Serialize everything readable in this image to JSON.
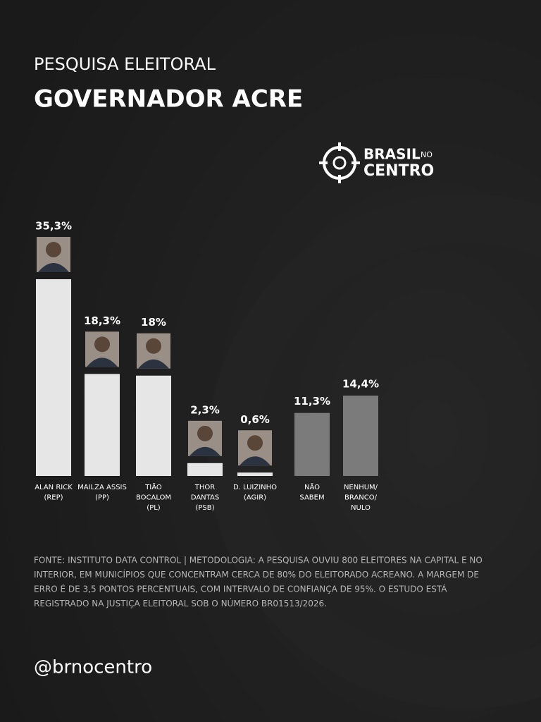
{
  "header": {
    "kicker": "PESQUISA ELEITORAL",
    "title": "GOVERNADOR ACRE"
  },
  "logo": {
    "line1": "BRASIL",
    "small": "NO",
    "line2": "CENTRO"
  },
  "chart_data": {
    "type": "bar",
    "categories": [
      [
        "ALAN RICK",
        "(REP)"
      ],
      [
        "MAILZA ASSIS",
        "(PP)"
      ],
      [
        "TIÃO",
        "BOCALOM",
        "(PL)"
      ],
      [
        "THOR",
        "DANTAS",
        "(PSB)"
      ],
      [
        "D. LUIZINHO",
        "(AGIR)"
      ],
      [
        "NÃO",
        "SABEM"
      ],
      [
        "NENHUM/",
        "BRANCO/",
        "NULO"
      ]
    ],
    "values": [
      35.3,
      18.3,
      18,
      2.3,
      0.6,
      11.3,
      14.4
    ],
    "value_labels": [
      "35,3%",
      "18,3%",
      "18%",
      "2,3%",
      "0,6%",
      "11,3%",
      "14,4%"
    ],
    "colors": [
      "#e6e6e6",
      "#e6e6e6",
      "#e6e6e6",
      "#e6e6e6",
      "#e6e6e6",
      "#7b7b7b",
      "#7b7b7b"
    ]
  },
  "source": [
    "FONTE: INSTITUTO DATA CONTROL | METODOLOGIA: A PESQUISA OUVIU 800 ELEITORES NA CAPITAL E NO",
    "INTERIOR, EM MUNICÍPIOS QUE CONCENTRAM CERCA DE 80% DO ELEITORADO ACREANO. A MARGEM DE",
    "ERRO É DE 3,5 PONTOS PERCENTUAIS, COM INTERVALO DE CONFIANÇA DE 95%. O ESTUDO ESTÁ",
    "REGISTRADO NA JUSTIÇA ELEITORAL SOB O NÚMERO BR01513/2026."
  ],
  "handle": "@brnocentro"
}
